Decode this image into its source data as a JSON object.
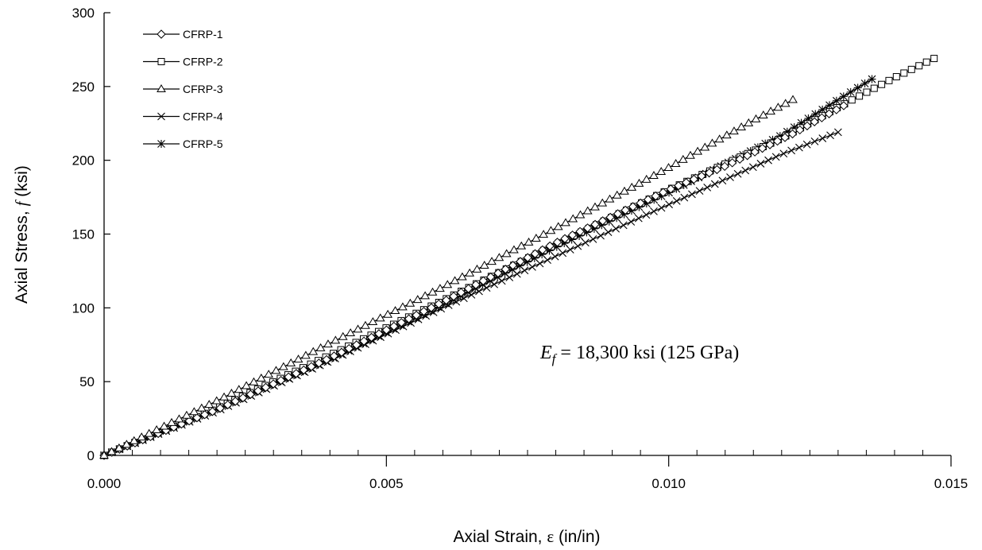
{
  "chart_data": {
    "type": "line",
    "xlabel_prefix": "Axial Strain, ",
    "xlabel_symbol": "ε",
    "xlabel_suffix": " (in/in)",
    "ylabel_prefix": "Axial Stress, ",
    "ylabel_symbol": "f",
    "ylabel_suffix": " (ksi)",
    "xlim": [
      0,
      0.015
    ],
    "ylim": [
      0,
      300
    ],
    "x_major_ticks": [
      0,
      0.005,
      0.01,
      0.015
    ],
    "x_tick_labels": [
      "0.000",
      "0.005",
      "0.010",
      "0.015"
    ],
    "x_minor_step": 0.0005,
    "y_ticks": [
      0,
      50,
      100,
      150,
      200,
      250,
      300
    ],
    "y_tick_labels": [
      "0",
      "50",
      "100",
      "150",
      "200",
      "250",
      "300"
    ],
    "grid": false,
    "legend_position": "top-left",
    "annotation": {
      "symbol": "E",
      "subscript": "f",
      "text": " = 18,300 ksi (125 GPa)"
    },
    "series": [
      {
        "name": "CFRP-1",
        "marker": "diamond",
        "x": [
          0,
          0.002,
          0.004,
          0.006,
          0.008,
          0.01,
          0.011,
          0.0122,
          0.0131
        ],
        "y": [
          0,
          31,
          66,
          104,
          144,
          180,
          196,
          218,
          237
        ]
      },
      {
        "name": "CFRP-2",
        "marker": "square",
        "x": [
          0,
          0.002,
          0.004,
          0.006,
          0.008,
          0.01,
          0.012,
          0.013,
          0.014,
          0.0147
        ],
        "y": [
          0,
          32,
          68,
          105,
          143,
          180,
          215,
          236,
          256,
          269
        ]
      },
      {
        "name": "CFRP-3",
        "marker": "triangle",
        "x": [
          0,
          0.002,
          0.004,
          0.006,
          0.008,
          0.01,
          0.0115,
          0.0122
        ],
        "y": [
          0,
          37,
          76,
          114,
          154,
          195,
          227,
          241
        ]
      },
      {
        "name": "CFRP-4",
        "marker": "x",
        "x": [
          0,
          0.002,
          0.004,
          0.006,
          0.008,
          0.01,
          0.012,
          0.013
        ],
        "y": [
          0,
          30,
          64,
          100,
          135,
          170,
          204,
          219
        ]
      },
      {
        "name": "CFRP-5",
        "marker": "asterisk",
        "x": [
          0,
          0.002,
          0.004,
          0.006,
          0.008,
          0.01,
          0.012,
          0.013,
          0.0136
        ],
        "y": [
          0,
          31,
          65,
          102,
          141,
          178,
          217,
          241,
          255
        ]
      }
    ]
  }
}
